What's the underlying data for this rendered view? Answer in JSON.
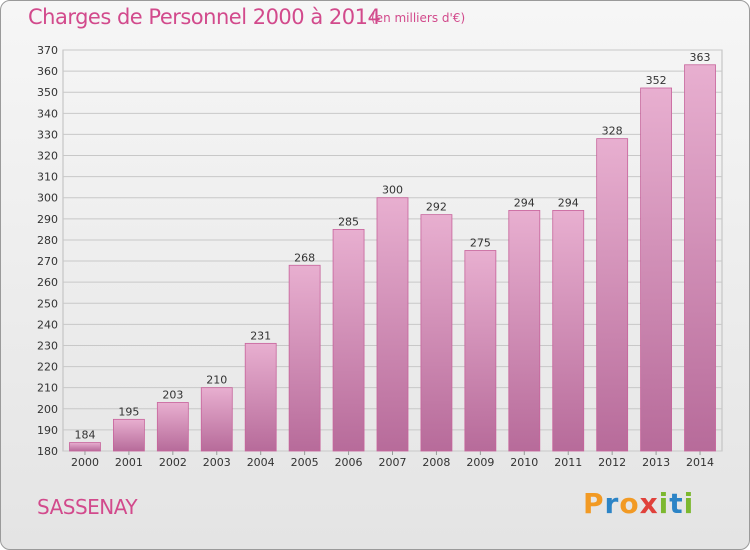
{
  "header": {
    "title": "Charges de Personnel 2000 à 2014",
    "subtitle": "(en milliers d'€)"
  },
  "footer": {
    "name": "SASSENAY",
    "brand_letters": [
      "P",
      "r",
      "o",
      "x",
      "i",
      "t",
      "i"
    ],
    "brand_colors": [
      "#f29a24",
      "#2c84c6",
      "#f29a24",
      "#e0413b",
      "#7cb82f",
      "#2c84c6",
      "#7cb82f"
    ]
  },
  "colors": {
    "bar_top": "#e8afd0",
    "bar_bottom": "#b76b9a",
    "accent": "#d24a8c"
  },
  "chart_data": {
    "type": "bar",
    "title": "Charges de Personnel 2000 à 2014",
    "subtitle": "(en milliers d'€)",
    "categories": [
      "2000",
      "2001",
      "2002",
      "2003",
      "2004",
      "2005",
      "2006",
      "2007",
      "2008",
      "2009",
      "2010",
      "2011",
      "2012",
      "2013",
      "2014"
    ],
    "values": [
      184,
      195,
      203,
      210,
      231,
      268,
      285,
      300,
      292,
      275,
      294,
      294,
      328,
      352,
      363
    ],
    "ylim": [
      180,
      370
    ],
    "yticks": [
      180,
      190,
      200,
      210,
      220,
      230,
      240,
      250,
      260,
      270,
      280,
      290,
      300,
      310,
      320,
      330,
      340,
      350,
      360,
      370
    ],
    "grid": true
  }
}
